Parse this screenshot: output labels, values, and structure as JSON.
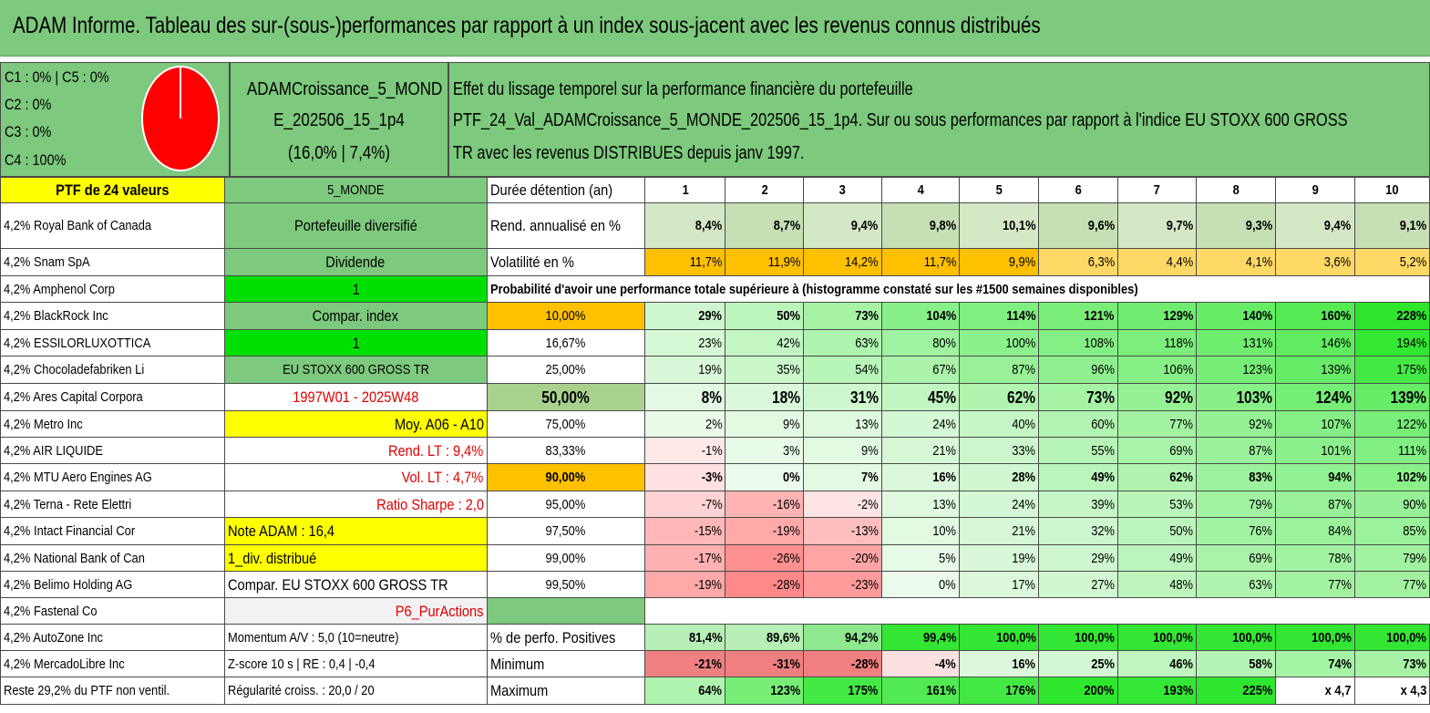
{
  "title": "ADAM Informe. Tableau des sur-(sous-)performances par rapport à un index sous-jacent avec les revenus connus distribués",
  "header": {
    "classes": [
      "C1 : 0% | C5 : 0%",
      "C2 : 0%",
      "C3 : 0%",
      "C4 : 100%"
    ],
    "portfolio_name_1": "ADAMCroissance_5_MOND",
    "portfolio_name_2": "E_202506_15_1p4",
    "portfolio_stats": "(16,0% | 7,4%)",
    "desc_1": "Effet du lissage temporel sur la performance financière du portefeuille",
    "desc_2": "PTF_24_Val_ADAMCroissance_5_MONDE_202506_15_1p4. Sur ou sous performances par rapport à l'indice EU STOXX 600 GROSS",
    "desc_3": "TR avec les revenus DISTRIBUES depuis janv 1997."
  },
  "holdings": [
    "PTF de 24 valeurs",
    "4,2% Royal Bank of Canada",
    "4,2% Snam SpA",
    "4,2% Amphenol Corp",
    "4,2% BlackRock Inc",
    "4,2% ESSILORLUXOTTICA",
    "4,2% Chocoladefabriken Li",
    "4,2% Ares Capital Corpora",
    "4,2% Metro Inc",
    "4,2% AIR LIQUIDE",
    "4,2% MTU Aero Engines AG",
    "4,2% Terna - Rete Elettri",
    "4,2% Intact Financial Cor",
    "4,2% National Bank of Can",
    "4,2% Belimo Holding AG",
    "4,2% Fastenal Co",
    "4,2% AutoZone Inc",
    "4,2% MercadoLibre Inc",
    "Reste 29,2% du PTF non ventil."
  ],
  "info": [
    "5_MONDE",
    "Portefeuille diversifié",
    "Dividende",
    "1",
    "Compar. index",
    "1",
    "EU STOXX 600 GROSS TR",
    "1997W01 - 2025W48",
    "Moy. A06 - A10",
    "Rend. LT : 9,4%",
    "Vol. LT : 4,7%",
    "Ratio Sharpe : 2,0",
    "Note ADAM : 16,4",
    "1_div. distribué",
    "Compar. EU STOXX 600 GROSS TR",
    "P6_PurActions",
    "Momentum A/V : 5,0 (10=neutre)",
    "Z-score 10 s | RE : 0,4 | -0,4",
    "Régularité croiss. : 20,0 / 20"
  ],
  "labels": {
    "duree": "Durée détention (an)",
    "rend": "Rend. annualisé en %",
    "vol": "Volatilité en %",
    "proba": "Probabilité d'avoir une performance totale supérieure à (histogramme constaté sur les #1500 semaines disponibles)",
    "pos": "% de perfo. Positives",
    "min": "Minimum",
    "max": "Maximum"
  },
  "years": [
    "1",
    "2",
    "3",
    "4",
    "5",
    "6",
    "7",
    "8",
    "9",
    "10"
  ],
  "rend": [
    "8,4%",
    "8,7%",
    "9,4%",
    "9,8%",
    "10,1%",
    "9,6%",
    "9,7%",
    "9,3%",
    "9,4%",
    "9,1%"
  ],
  "vol": [
    "11,7%",
    "11,9%",
    "14,2%",
    "11,7%",
    "9,9%",
    "6,3%",
    "4,4%",
    "4,1%",
    "3,6%",
    "5,2%"
  ],
  "thresholds": [
    "10,00%",
    "16,67%",
    "25,00%",
    "50,00%",
    "75,00%",
    "83,33%",
    "90,00%",
    "95,00%",
    "97,50%",
    "99,00%",
    "99,50%"
  ],
  "probs": [
    [
      "29%",
      "50%",
      "73%",
      "104%",
      "114%",
      "121%",
      "129%",
      "140%",
      "160%",
      "228%"
    ],
    [
      "23%",
      "42%",
      "63%",
      "80%",
      "100%",
      "108%",
      "118%",
      "131%",
      "146%",
      "194%"
    ],
    [
      "19%",
      "35%",
      "54%",
      "67%",
      "87%",
      "96%",
      "106%",
      "123%",
      "139%",
      "175%"
    ],
    [
      "8%",
      "18%",
      "31%",
      "45%",
      "62%",
      "73%",
      "92%",
      "103%",
      "124%",
      "139%"
    ],
    [
      "2%",
      "9%",
      "13%",
      "24%",
      "40%",
      "60%",
      "77%",
      "92%",
      "107%",
      "122%"
    ],
    [
      "-1%",
      "3%",
      "9%",
      "21%",
      "33%",
      "55%",
      "69%",
      "87%",
      "101%",
      "111%"
    ],
    [
      "-3%",
      "0%",
      "7%",
      "16%",
      "28%",
      "49%",
      "62%",
      "83%",
      "94%",
      "102%"
    ],
    [
      "-7%",
      "-16%",
      "-2%",
      "13%",
      "24%",
      "39%",
      "53%",
      "79%",
      "87%",
      "90%"
    ],
    [
      "-15%",
      "-19%",
      "-13%",
      "10%",
      "21%",
      "32%",
      "50%",
      "76%",
      "84%",
      "85%"
    ],
    [
      "-17%",
      "-26%",
      "-20%",
      "5%",
      "19%",
      "29%",
      "49%",
      "69%",
      "78%",
      "79%"
    ],
    [
      "-19%",
      "-28%",
      "-23%",
      "0%",
      "17%",
      "27%",
      "48%",
      "63%",
      "77%",
      "77%"
    ]
  ],
  "pos": [
    "81,4%",
    "89,6%",
    "94,2%",
    "99,4%",
    "100,0%",
    "100,0%",
    "100,0%",
    "100,0%",
    "100,0%",
    "100,0%"
  ],
  "min": [
    "-21%",
    "-31%",
    "-28%",
    "-4%",
    "16%",
    "25%",
    "46%",
    "58%",
    "74%",
    "73%"
  ],
  "max": [
    "64%",
    "123%",
    "175%",
    "161%",
    "176%",
    "200%",
    "193%",
    "225%",
    "x 4,7",
    "x 4,3"
  ],
  "colors": {
    "green_header": "#7dc97d",
    "yellow": "#ffff00",
    "orange": "#ffc000",
    "bright_green": "#00e000",
    "red_text": "#e00000",
    "pie_red": "#ff0000"
  }
}
